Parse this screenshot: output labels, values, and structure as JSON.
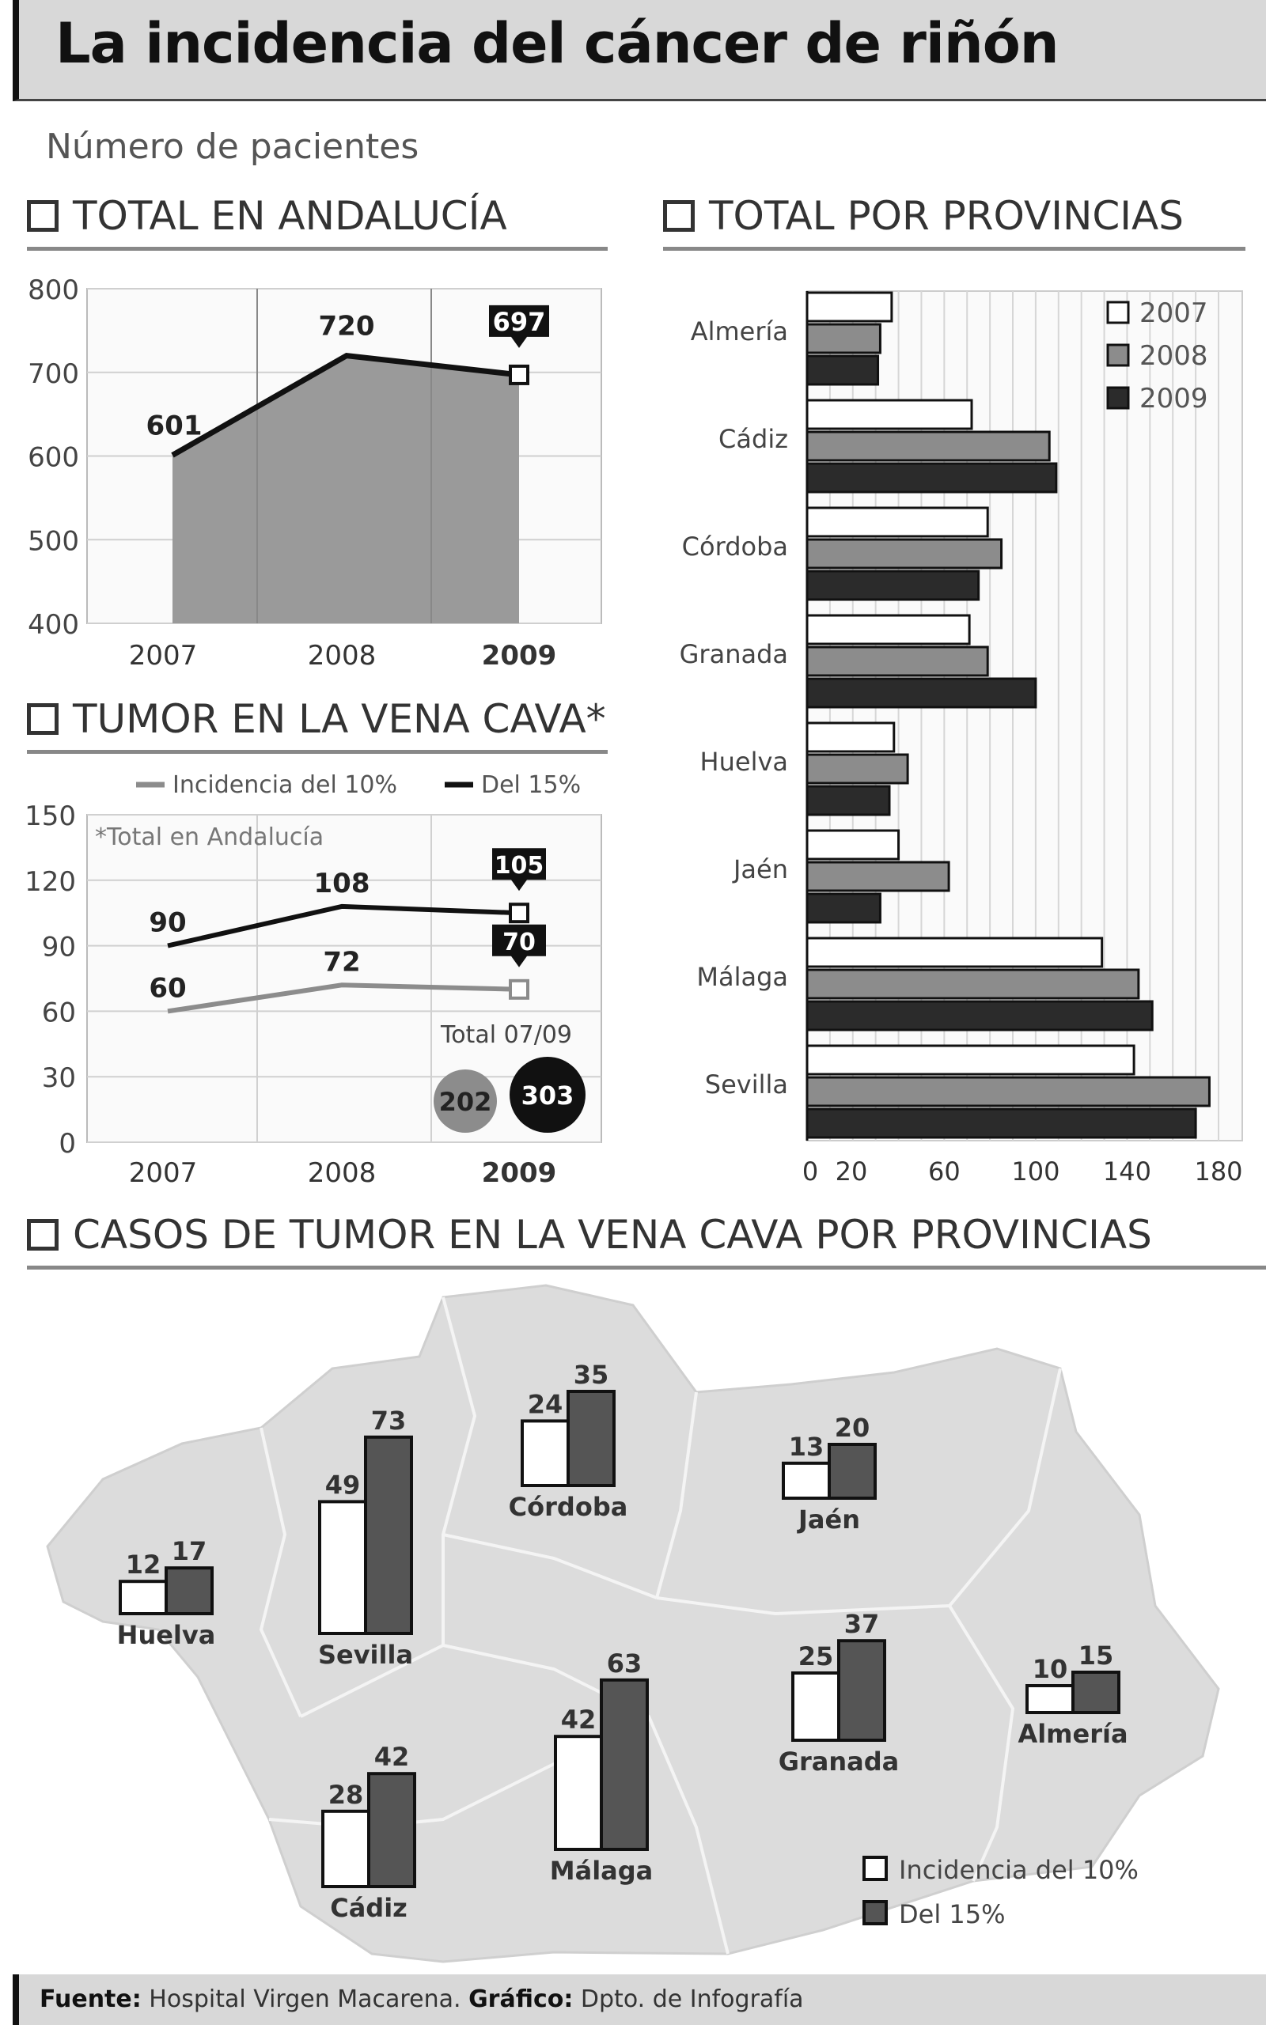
{
  "title": "La incidencia del cáncer de riñón",
  "subtitle": "Número de pacientes",
  "footer": {
    "source_label": "Fuente:",
    "source": "Hospital Virgen Macarena.",
    "graphic_label": "Gráfico:",
    "graphic": "Dpto. de Infografía"
  },
  "chart_data": [
    {
      "type": "area",
      "title": "TOTAL EN ANDALUCÍA",
      "categories": [
        "2007",
        "2008",
        "2009"
      ],
      "values": [
        601,
        720,
        697
      ],
      "value_labels": [
        "601",
        "720",
        "697"
      ],
      "ylim": [
        400,
        800
      ],
      "yticks": [
        400,
        500,
        600,
        700,
        800
      ],
      "ytick_labels": [
        "400",
        "500",
        "600",
        "700",
        "800"
      ],
      "highlight_category": "2009",
      "grid": true
    },
    {
      "type": "bar",
      "orientation": "horizontal",
      "title": "TOTAL POR PROVINCIAS",
      "categories": [
        "Almería",
        "Cádiz",
        "Córdoba",
        "Granada",
        "Huelva",
        "Jaén",
        "Málaga",
        "Sevilla"
      ],
      "series": [
        {
          "name": "2007",
          "color": "#ffffff",
          "values": [
            37,
            72,
            79,
            71,
            38,
            40,
            129,
            143
          ]
        },
        {
          "name": "2008",
          "color": "#8c8c8c",
          "values": [
            32,
            106,
            85,
            79,
            44,
            62,
            145,
            176
          ]
        },
        {
          "name": "2009",
          "color": "#2b2b2b",
          "values": [
            31,
            109,
            75,
            100,
            36,
            32,
            151,
            170
          ]
        }
      ],
      "xlim": [
        0,
        180
      ],
      "xticks": [
        0,
        20,
        60,
        100,
        140,
        180
      ],
      "xtick_labels": [
        "0",
        "20",
        "60",
        "100",
        "140",
        "180"
      ],
      "legend": "top-right",
      "grid": true
    },
    {
      "type": "line",
      "title": "TUMOR EN LA VENA CAVA*",
      "note": "*Total en Andalucía",
      "categories": [
        "2007",
        "2008",
        "2009"
      ],
      "series": [
        {
          "name": "Incidencia del 10%",
          "color": "#8c8c8c",
          "values": [
            60,
            72,
            70
          ],
          "labels": [
            "60",
            "72",
            "70"
          ]
        },
        {
          "name": "Del 15%",
          "color": "#111111",
          "values": [
            90,
            108,
            105
          ],
          "labels": [
            "90",
            "108",
            "105"
          ]
        }
      ],
      "ylim": [
        0,
        150
      ],
      "yticks": [
        0,
        30,
        60,
        90,
        120,
        150
      ],
      "ytick_labels": [
        "0",
        "30",
        "60",
        "90",
        "120",
        "150"
      ],
      "legend": "top",
      "total_label": "Total 07/09",
      "totals": [
        "202",
        "303"
      ],
      "highlight_category": "2009",
      "grid": true
    },
    {
      "type": "bar",
      "title": "CASOS DE TUMOR EN LA VENA CAVA POR PROVINCIAS",
      "categories": [
        "Huelva",
        "Sevilla",
        "Córdoba",
        "Jaén",
        "Cádiz",
        "Málaga",
        "Granada",
        "Almería"
      ],
      "series": [
        {
          "name": "Incidencia del 10%",
          "color": "#ffffff",
          "values": [
            12,
            49,
            24,
            13,
            28,
            42,
            25,
            10
          ]
        },
        {
          "name": "Del 15%",
          "color": "#555555",
          "values": [
            17,
            73,
            35,
            20,
            42,
            63,
            37,
            15
          ]
        }
      ],
      "legend": "bottom-right",
      "background": "map of Andalucía"
    }
  ]
}
